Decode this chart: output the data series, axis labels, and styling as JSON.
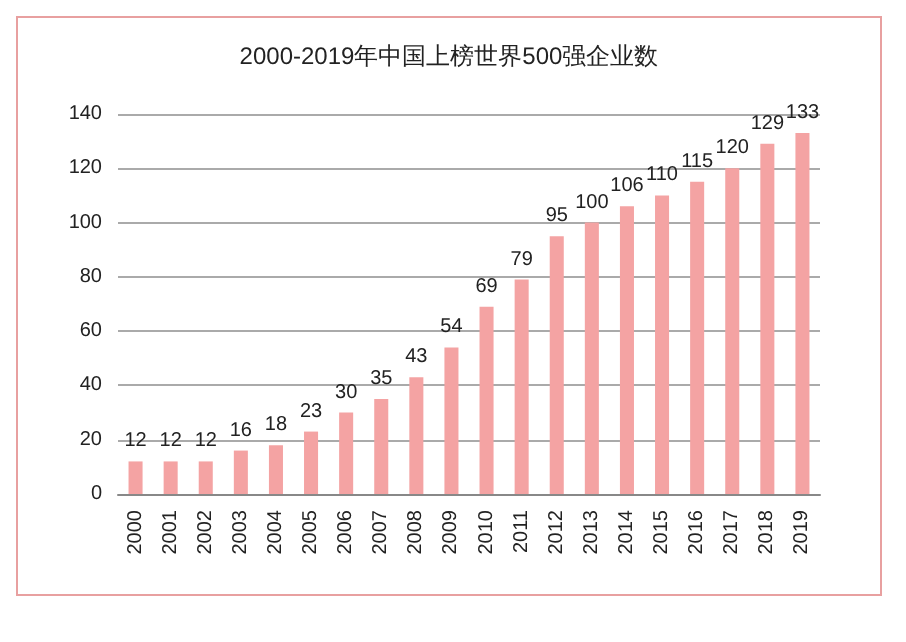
{
  "chart_data": {
    "type": "bar",
    "title": "2000-2019年中国上榜世界500强企业数",
    "categories": [
      "2000",
      "2001",
      "2002",
      "2003",
      "2004",
      "2005",
      "2006",
      "2007",
      "2008",
      "2009",
      "2010",
      "2011",
      "2012",
      "2013",
      "2014",
      "2015",
      "2016",
      "2017",
      "2018",
      "2019"
    ],
    "values": [
      12,
      12,
      12,
      16,
      18,
      23,
      30,
      35,
      43,
      54,
      69,
      79,
      95,
      100,
      106,
      110,
      115,
      120,
      129,
      133
    ],
    "color": "#f4a3a3",
    "ylim": [
      0,
      140
    ],
    "yticks": [
      0,
      20,
      40,
      60,
      80,
      100,
      120,
      140
    ],
    "grid": "y",
    "data_labels": true
  }
}
